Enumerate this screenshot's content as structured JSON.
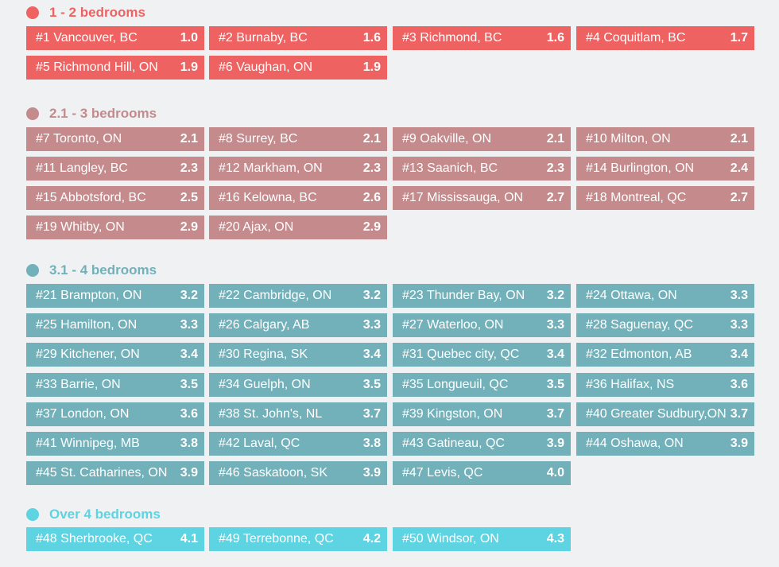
{
  "colors": {
    "background": "#f0f1f3",
    "group1": "#ef6262",
    "group2": "#c48a8c",
    "group3": "#72b1ba",
    "group4": "#5ed3e2"
  },
  "groups": [
    {
      "title": "1 - 2 bedrooms",
      "color": "#ef6262",
      "items": [
        {
          "label": "#1  Vancouver, BC",
          "value": "1.0"
        },
        {
          "label": "#2  Burnaby, BC",
          "value": "1.6"
        },
        {
          "label": "#3  Richmond, BC",
          "value": "1.6"
        },
        {
          "label": "#4  Coquitlam, BC",
          "value": "1.7"
        },
        {
          "label": "#5  Richmond Hill, ON",
          "value": "1.9"
        },
        {
          "label": "#6  Vaughan, ON",
          "value": "1.9"
        }
      ]
    },
    {
      "title": "2.1 - 3 bedrooms",
      "color": "#c48a8c",
      "items": [
        {
          "label": "#7  Toronto, ON",
          "value": "2.1"
        },
        {
          "label": "#8  Surrey, BC",
          "value": "2.1"
        },
        {
          "label": "#9  Oakville, ON",
          "value": "2.1"
        },
        {
          "label": "#10  Milton, ON",
          "value": "2.1"
        },
        {
          "label": "#11  Langley, BC",
          "value": "2.3"
        },
        {
          "label": "#12  Markham, ON",
          "value": "2.3"
        },
        {
          "label": "#13  Saanich, BC",
          "value": "2.3"
        },
        {
          "label": "#14  Burlington, ON",
          "value": "2.4"
        },
        {
          "label": "#15  Abbotsford, BC",
          "value": "2.5"
        },
        {
          "label": "#16  Kelowna, BC",
          "value": "2.6"
        },
        {
          "label": "#17  Mississauga, ON",
          "value": "2.7"
        },
        {
          "label": "#18  Montreal, QC",
          "value": "2.7"
        },
        {
          "label": "#19  Whitby, ON",
          "value": "2.9"
        },
        {
          "label": "#20  Ajax, ON",
          "value": "2.9"
        }
      ]
    },
    {
      "title": "3.1 - 4 bedrooms",
      "color": "#72b1ba",
      "items": [
        {
          "label": "#21  Brampton, ON",
          "value": "3.2"
        },
        {
          "label": "#22  Cambridge, ON",
          "value": "3.2"
        },
        {
          "label": "#23  Thunder Bay, ON",
          "value": "3.2"
        },
        {
          "label": "#24  Ottawa, ON",
          "value": "3.3"
        },
        {
          "label": "#25  Hamilton, ON",
          "value": "3.3"
        },
        {
          "label": "#26  Calgary, AB",
          "value": "3.3"
        },
        {
          "label": "#27 Waterloo, ON",
          "value": "3.3"
        },
        {
          "label": "#28 Saguenay, QC",
          "value": "3.3"
        },
        {
          "label": "#29 Kitchener, ON",
          "value": "3.4"
        },
        {
          "label": "#30 Regina, SK",
          "value": "3.4"
        },
        {
          "label": "#31 Quebec city, QC",
          "value": "3.4"
        },
        {
          "label": "#32 Edmonton, AB",
          "value": "3.4"
        },
        {
          "label": "#33 Barrie, ON",
          "value": "3.5"
        },
        {
          "label": "#34  Guelph, ON",
          "value": "3.5"
        },
        {
          "label": "#35  Longueuil, QC",
          "value": "3.5"
        },
        {
          "label": "#36  Halifax, NS",
          "value": "3.6"
        },
        {
          "label": "#37  London, ON",
          "value": "3.6"
        },
        {
          "label": "#38  St. John's, NL",
          "value": "3.7"
        },
        {
          "label": "#39  Kingston, ON",
          "value": "3.7"
        },
        {
          "label": "#40  Greater Sudbury,ON",
          "value": "3.7"
        },
        {
          "label": "#41  Winnipeg, MB",
          "value": "3.8"
        },
        {
          "label": "#42  Laval, QC",
          "value": "3.8"
        },
        {
          "label": "#43  Gatineau, QC",
          "value": "3.9"
        },
        {
          "label": "#44  Oshawa, ON",
          "value": "3.9"
        },
        {
          "label": "#45  St. Catharines, ON",
          "value": "3.9"
        },
        {
          "label": "#46   Saskatoon, SK",
          "value": "3.9"
        },
        {
          "label": "#47  Levis, QC",
          "value": "4.0"
        }
      ]
    },
    {
      "title": "Over 4 bedrooms",
      "color": "#5ed3e2",
      "items": [
        {
          "label": "#48  Sherbrooke, QC",
          "value": "4.1"
        },
        {
          "label": "#49  Terrebonne, QC",
          "value": "4.2"
        },
        {
          "label": "#50  Windsor, ON",
          "value": "4.3"
        }
      ]
    }
  ]
}
